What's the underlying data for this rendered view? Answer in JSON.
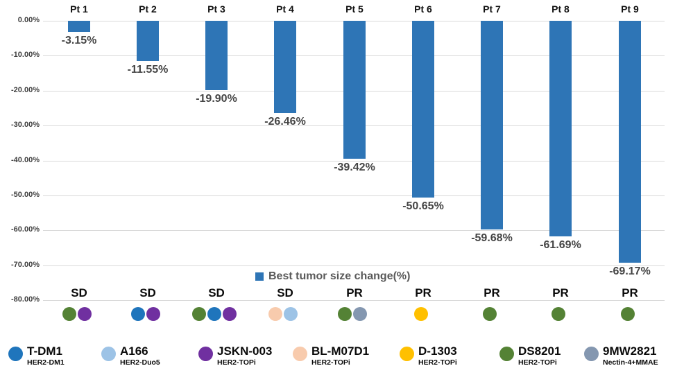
{
  "chart_data": {
    "type": "bar",
    "title": "",
    "legend_label": "Best tumor size change(%)",
    "bar_color": "#2e75b6",
    "grid": true,
    "legend_position": "bottom-center",
    "ylim": [
      -80,
      0
    ],
    "yticks": [
      "0.00%",
      "-10.00%",
      "-20.00%",
      "-30.00%",
      "-40.00%",
      "-50.00%",
      "-60.00%",
      "-70.00%",
      "-80.00%"
    ],
    "categories": [
      "Pt 1",
      "Pt 2",
      "Pt 3",
      "Pt 4",
      "Pt 5",
      "Pt 6",
      "Pt 7",
      "Pt 8",
      "Pt 9"
    ],
    "values": [
      -3.15,
      -11.55,
      -19.9,
      -26.46,
      -39.42,
      -50.65,
      -59.68,
      -61.69,
      -69.17
    ],
    "value_labels": [
      "-3.15%",
      "-11.55%",
      "-19.90%",
      "-26.46%",
      "-39.42%",
      "-50.65%",
      "-59.68%",
      "-61.69%",
      "-69.17%"
    ],
    "responses": [
      "SD",
      "SD",
      "SD",
      "SD",
      "PR",
      "PR",
      "PR",
      "PR",
      "PR"
    ],
    "patient_drugs": [
      [
        "DS8201",
        "JSKN-003"
      ],
      [
        "T-DM1",
        "JSKN-003"
      ],
      [
        "DS8201",
        "T-DM1",
        "JSKN-003"
      ],
      [
        "BL-M07D1",
        "A166"
      ],
      [
        "DS8201",
        "9MW2821"
      ],
      [
        "D-1303"
      ],
      [
        "DS8201"
      ],
      [
        "DS8201"
      ],
      [
        "DS8201"
      ]
    ]
  },
  "drug_legend": {
    "items": [
      {
        "name": "T-DM1",
        "sub": "HER2-DM1",
        "color": "#1f75bc"
      },
      {
        "name": "A166",
        "sub": "HER2-Duo5",
        "color": "#9dc3e6"
      },
      {
        "name": "JSKN-003",
        "sub": "HER2-TOPi",
        "color": "#7030a0"
      },
      {
        "name": "BL-M07D1",
        "sub": "HER2-TOPi",
        "color": "#f8cbad"
      },
      {
        "name": "D-1303",
        "sub": "HER2-TOPi",
        "color": "#ffc000"
      },
      {
        "name": "DS8201",
        "sub": "HER2-TOPi",
        "color": "#548235"
      },
      {
        "name": "9MW2821",
        "sub": "Nectin-4+MMAE",
        "color": "#8497b0"
      }
    ]
  }
}
